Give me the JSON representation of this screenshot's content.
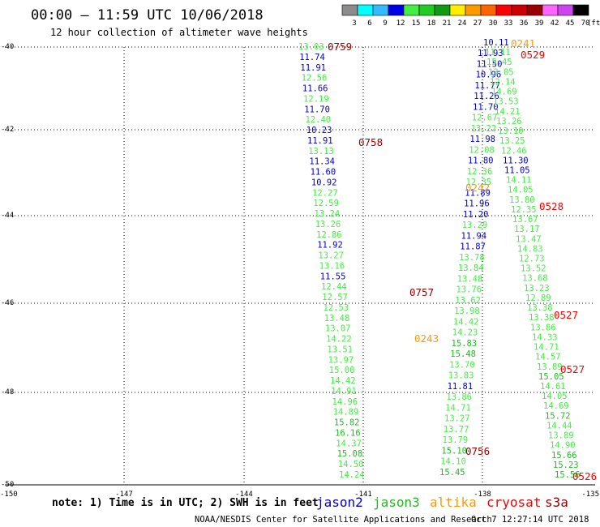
{
  "title": "00:00 – 11:59 UTC 10/06/2018",
  "subtitle": "12 hour collection of altimeter wave heights",
  "scale": {
    "labels": [
      "3",
      "6",
      "9",
      "12",
      "15",
      "18",
      "21",
      "24",
      "27",
      "30",
      "33",
      "36",
      "39",
      "42",
      "45",
      "70"
    ],
    "unit": "(ft)",
    "colors": [
      "#8c8c8c",
      "#00ffff",
      "#33bbff",
      "#0000e6",
      "#44ee44",
      "#22cc22",
      "#119911",
      "#ffee00",
      "#ff9900",
      "#ff6600",
      "#ff0000",
      "#cc0000",
      "#990000",
      "#ff66ff",
      "#cc44ee",
      "#000000"
    ]
  },
  "axes": {
    "lon_labels": [
      "-150",
      "-147",
      "-144",
      "-141",
      "-138",
      "-135"
    ],
    "lat_labels": [
      "-40",
      "-42",
      "-44",
      "-46",
      "-48",
      "-50"
    ]
  },
  "note": "note:  1) Time is in UTC;  2) SWH is in feet",
  "satellites": [
    {
      "name": "jason2",
      "color": "#0000cc"
    },
    {
      "name": "jason3",
      "color": "#22bb22"
    },
    {
      "name": "altika",
      "color": "#ff9900"
    },
    {
      "name": "cryosat",
      "color": "#ff0000"
    },
    {
      "name": "s3a",
      "color": "#990000"
    }
  ],
  "footer_left": "NOAA/NESDIS Center for Satellite Applications and Research",
  "footer_right": "Oct  7 12:27:14 UTC 2018",
  "tracks": {
    "track1": [
      {
        "v": "13.03",
        "c": "#44ee44"
      },
      {
        "v": "11.74",
        "c": "#0000cc"
      },
      {
        "v": "11.91",
        "c": "#0000cc"
      },
      {
        "v": "12.56",
        "c": "#44ee44"
      },
      {
        "v": "11.66",
        "c": "#0000cc"
      },
      {
        "v": "12.19",
        "c": "#44ee44"
      },
      {
        "v": "11.70",
        "c": "#0000cc"
      },
      {
        "v": "12.40",
        "c": "#44ee44"
      },
      {
        "v": "10.23",
        "c": "#0000cc"
      },
      {
        "v": "11.91",
        "c": "#0000cc"
      },
      {
        "v": "13.13",
        "c": "#44ee44"
      },
      {
        "v": "11.34",
        "c": "#0000cc"
      },
      {
        "v": "11.60",
        "c": "#0000cc"
      },
      {
        "v": "10.92",
        "c": "#0000cc"
      },
      {
        "v": "12.27",
        "c": "#44ee44"
      },
      {
        "v": "12.59",
        "c": "#44ee44"
      },
      {
        "v": "13.24",
        "c": "#44ee44"
      },
      {
        "v": "13.26",
        "c": "#44ee44"
      },
      {
        "v": "12.86",
        "c": "#44ee44"
      },
      {
        "v": "11.92",
        "c": "#0000cc"
      },
      {
        "v": "13.27",
        "c": "#44ee44"
      },
      {
        "v": "13.16",
        "c": "#44ee44"
      },
      {
        "v": "11.55",
        "c": "#0000cc"
      },
      {
        "v": "12.44",
        "c": "#44ee44"
      },
      {
        "v": "12.57",
        "c": "#44ee44"
      },
      {
        "v": "12.53",
        "c": "#44ee44"
      },
      {
        "v": "13.48",
        "c": "#44ee44"
      },
      {
        "v": "13.07",
        "c": "#44ee44"
      },
      {
        "v": "14.22",
        "c": "#44ee44"
      },
      {
        "v": "13.51",
        "c": "#44ee44"
      },
      {
        "v": "13.97",
        "c": "#44ee44"
      },
      {
        "v": "15.00",
        "c": "#44ee44"
      },
      {
        "v": "14.42",
        "c": "#44ee44"
      },
      {
        "v": "14.91",
        "c": "#44ee44"
      },
      {
        "v": "14.96",
        "c": "#44ee44"
      },
      {
        "v": "14.89",
        "c": "#44ee44"
      },
      {
        "v": "15.82",
        "c": "#22bb22"
      },
      {
        "v": "16.16",
        "c": "#22bb22"
      },
      {
        "v": "14.37",
        "c": "#44ee44"
      },
      {
        "v": "15.08",
        "c": "#22bb22"
      },
      {
        "v": "14.50",
        "c": "#44ee44"
      },
      {
        "v": "14.24",
        "c": "#44ee44"
      }
    ],
    "track2": [
      {
        "v": "11.93",
        "c": "#0000cc"
      },
      {
        "v": "11.50",
        "c": "#0000cc"
      },
      {
        "v": "10.96",
        "c": "#0000cc"
      },
      {
        "v": "11.77",
        "c": "#0000cc"
      },
      {
        "v": "11.26",
        "c": "#0000cc"
      },
      {
        "v": "11.70",
        "c": "#0000cc"
      },
      {
        "v": "12.67",
        "c": "#44ee44"
      },
      {
        "v": "13.22",
        "c": "#44ee44"
      },
      {
        "v": "11.98",
        "c": "#0000cc"
      },
      {
        "v": "12.08",
        "c": "#44ee44"
      },
      {
        "v": "11.80",
        "c": "#0000cc"
      },
      {
        "v": "12.36",
        "c": "#44ee44"
      },
      {
        "v": "12.35",
        "c": "#44ee44"
      },
      {
        "v": "11.89",
        "c": "#0000cc"
      },
      {
        "v": "11.96",
        "c": "#0000cc"
      },
      {
        "v": "11.20",
        "c": "#0000cc"
      },
      {
        "v": "13.29",
        "c": "#44ee44"
      },
      {
        "v": "11.94",
        "c": "#0000cc"
      },
      {
        "v": "11.87",
        "c": "#0000cc"
      },
      {
        "v": "13.78",
        "c": "#44ee44"
      },
      {
        "v": "13.84",
        "c": "#44ee44"
      },
      {
        "v": "13.48",
        "c": "#44ee44"
      },
      {
        "v": "13.76",
        "c": "#44ee44"
      },
      {
        "v": "13.62",
        "c": "#44ee44"
      },
      {
        "v": "13.98",
        "c": "#44ee44"
      },
      {
        "v": "14.42",
        "c": "#44ee44"
      },
      {
        "v": "14.23",
        "c": "#44ee44"
      },
      {
        "v": "15.83",
        "c": "#22bb22"
      },
      {
        "v": "15.48",
        "c": "#22bb22"
      },
      {
        "v": "13.70",
        "c": "#44ee44"
      },
      {
        "v": "13.83",
        "c": "#44ee44"
      },
      {
        "v": "11.81",
        "c": "#0000cc"
      },
      {
        "v": "13.86",
        "c": "#44ee44"
      },
      {
        "v": "14.71",
        "c": "#44ee44"
      },
      {
        "v": "13.27",
        "c": "#44ee44"
      },
      {
        "v": "13.77",
        "c": "#44ee44"
      },
      {
        "v": "13.79",
        "c": "#44ee44"
      },
      {
        "v": "15.10",
        "c": "#22bb22"
      },
      {
        "v": "14.10",
        "c": "#44ee44"
      },
      {
        "v": "15.45",
        "c": "#22bb22"
      }
    ],
    "track3": [
      {
        "v": "10.11",
        "c": "#0000cc"
      },
      {
        "v": "11.11",
        "c": "#44ee44"
      },
      {
        "v": "15.45",
        "c": "#44ee44"
      },
      {
        "v": "13.05",
        "c": "#44ee44"
      },
      {
        "v": "12.14",
        "c": "#44ee44"
      },
      {
        "v": "14.69",
        "c": "#44ee44"
      },
      {
        "v": "13.53",
        "c": "#44ee44"
      },
      {
        "v": "14.21",
        "c": "#44ee44"
      },
      {
        "v": "13.26",
        "c": "#44ee44"
      },
      {
        "v": "13.10",
        "c": "#44ee44"
      },
      {
        "v": "13.25",
        "c": "#44ee44"
      },
      {
        "v": "12.46",
        "c": "#44ee44"
      },
      {
        "v": "11.30",
        "c": "#0000cc"
      },
      {
        "v": "11.05",
        "c": "#0000cc"
      },
      {
        "v": "14.11",
        "c": "#44ee44"
      },
      {
        "v": "14.05",
        "c": "#44ee44"
      },
      {
        "v": "13.80",
        "c": "#44ee44"
      },
      {
        "v": "12.35",
        "c": "#44ee44"
      },
      {
        "v": "13.67",
        "c": "#44ee44"
      },
      {
        "v": "13.17",
        "c": "#44ee44"
      },
      {
        "v": "13.47",
        "c": "#44ee44"
      },
      {
        "v": "14.83",
        "c": "#44ee44"
      },
      {
        "v": "12.73",
        "c": "#44ee44"
      },
      {
        "v": "13.52",
        "c": "#44ee44"
      },
      {
        "v": "13.68",
        "c": "#44ee44"
      },
      {
        "v": "13.23",
        "c": "#44ee44"
      },
      {
        "v": "12.89",
        "c": "#44ee44"
      },
      {
        "v": "13.38",
        "c": "#44ee44"
      },
      {
        "v": "13.38",
        "c": "#44ee44"
      },
      {
        "v": "13.86",
        "c": "#44ee44"
      },
      {
        "v": "14.33",
        "c": "#44ee44"
      },
      {
        "v": "14.71",
        "c": "#44ee44"
      },
      {
        "v": "14.57",
        "c": "#44ee44"
      },
      {
        "v": "13.89",
        "c": "#44ee44"
      },
      {
        "v": "15.05",
        "c": "#22bb22"
      },
      {
        "v": "14.61",
        "c": "#44ee44"
      },
      {
        "v": "14.05",
        "c": "#44ee44"
      },
      {
        "v": "14.69",
        "c": "#44ee44"
      },
      {
        "v": "15.72",
        "c": "#22bb22"
      },
      {
        "v": "14.44",
        "c": "#44ee44"
      },
      {
        "v": "13.89",
        "c": "#44ee44"
      },
      {
        "v": "14.90",
        "c": "#44ee44"
      },
      {
        "v": "15.66",
        "c": "#22bb22"
      },
      {
        "v": "15.23",
        "c": "#22bb22"
      },
      {
        "v": "15.56",
        "c": "#22bb22"
      }
    ]
  },
  "time_labels": [
    {
      "text": "0759",
      "color": "#990000"
    },
    {
      "text": "0758",
      "color": "#990000"
    },
    {
      "text": "0757",
      "color": "#990000"
    },
    {
      "text": "0756",
      "color": "#990000"
    },
    {
      "text": "0241",
      "color": "#ff9900"
    },
    {
      "text": "0242",
      "color": "#ff9900"
    },
    {
      "text": "0243",
      "color": "#ff9900"
    },
    {
      "text": "0529",
      "color": "#ff0000"
    },
    {
      "text": "0528",
      "color": "#ff0000"
    },
    {
      "text": "0527",
      "color": "#ff0000"
    },
    {
      "text": "0527",
      "color": "#ff0000"
    },
    {
      "text": "0526",
      "color": "#ff0000"
    }
  ]
}
